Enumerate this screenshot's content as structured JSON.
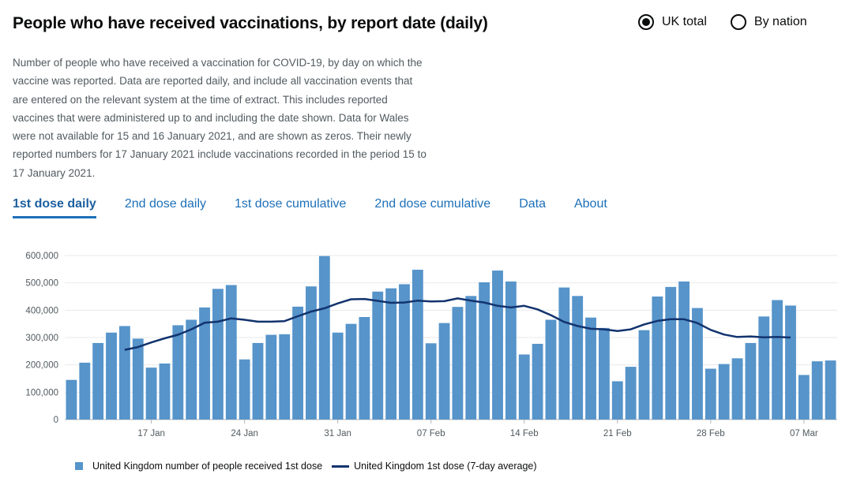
{
  "header": {
    "title": "People who have received vaccinations, by report date (daily)",
    "options": [
      {
        "label": "UK total",
        "selected": true
      },
      {
        "label": "By nation",
        "selected": false
      }
    ]
  },
  "description": "Number of people who have received a vaccination for COVID-19, by day on which the vaccine was reported. Data are reported daily, and include all vaccination events that are entered on the relevant system at the time of extract. This includes reported vaccines that were administered up to and including the date shown. Data for Wales were not available for 15 and 16 January 2021, and are shown as zeros. Their newly reported numbers for 17 January 2021 include vaccinations recorded in the period 15 to 17 January 2021.",
  "tabs": [
    {
      "label": "1st dose daily",
      "active": true
    },
    {
      "label": "2nd dose daily",
      "active": false
    },
    {
      "label": "1st dose cumulative",
      "active": false
    },
    {
      "label": "2nd dose cumulative",
      "active": false
    },
    {
      "label": "Data",
      "active": false
    },
    {
      "label": "About",
      "active": false
    }
  ],
  "colors": {
    "bar": "#5694ca",
    "line": "#12336e",
    "link": "#1d70b8",
    "grid": "#e9eaeb"
  },
  "chart_data": {
    "type": "bar",
    "x": [
      "2021-01-11",
      "2021-01-12",
      "2021-01-13",
      "2021-01-14",
      "2021-01-15",
      "2021-01-16",
      "2021-01-17",
      "2021-01-18",
      "2021-01-19",
      "2021-01-20",
      "2021-01-21",
      "2021-01-22",
      "2021-01-23",
      "2021-01-24",
      "2021-01-25",
      "2021-01-26",
      "2021-01-27",
      "2021-01-28",
      "2021-01-29",
      "2021-01-30",
      "2021-01-31",
      "2021-02-01",
      "2021-02-02",
      "2021-02-03",
      "2021-02-04",
      "2021-02-05",
      "2021-02-06",
      "2021-02-07",
      "2021-02-08",
      "2021-02-09",
      "2021-02-10",
      "2021-02-11",
      "2021-02-12",
      "2021-02-13",
      "2021-02-14",
      "2021-02-15",
      "2021-02-16",
      "2021-02-17",
      "2021-02-18",
      "2021-02-19",
      "2021-02-20",
      "2021-02-21",
      "2021-02-22",
      "2021-02-23",
      "2021-02-24",
      "2021-02-25",
      "2021-02-26",
      "2021-02-27",
      "2021-02-28",
      "2021-03-01",
      "2021-03-02",
      "2021-03-03",
      "2021-03-04",
      "2021-03-05",
      "2021-03-06",
      "2021-03-07",
      "2021-03-08",
      "2021-03-09"
    ],
    "series": [
      {
        "name": "United Kingdom number of people received 1st dose",
        "kind": "bar",
        "values": [
          145000,
          208000,
          280000,
          318000,
          342000,
          296000,
          190000,
          205000,
          345000,
          365000,
          410000,
          478000,
          492000,
          220000,
          280000,
          310000,
          312000,
          413000,
          487000,
          598000,
          318000,
          350000,
          375000,
          468000,
          480000,
          495000,
          548000,
          279000,
          353000,
          412000,
          452000,
          502000,
          545000,
          505000,
          238000,
          277000,
          365000,
          483000,
          452000,
          373000,
          335000,
          140000,
          193000,
          327000,
          450000,
          485000,
          505000,
          408000,
          186000,
          203000,
          224000,
          280000,
          377000,
          437000,
          417000,
          163000,
          213000,
          216000
        ]
      },
      {
        "name": "United Kingdom 1st dose (7-day average)",
        "kind": "line",
        "values": [
          null,
          null,
          null,
          null,
          255000,
          265000,
          282000,
          297000,
          310000,
          330000,
          354000,
          358000,
          370000,
          365000,
          358000,
          358000,
          360000,
          378000,
          395000,
          407000,
          425000,
          440000,
          441000,
          434000,
          427000,
          428000,
          435000,
          432000,
          433000,
          443000,
          435000,
          428000,
          416000,
          410000,
          416000,
          403000,
          382000,
          357000,
          342000,
          332000,
          330000,
          324000,
          330000,
          348000,
          361000,
          367000,
          367000,
          353000,
          328000,
          311000,
          302000,
          304000,
          301000,
          302000,
          300000,
          null,
          null,
          null
        ]
      }
    ],
    "x_tick_labels": [
      "17 Jan",
      "24 Jan",
      "31 Jan",
      "07 Feb",
      "14 Feb",
      "21 Feb",
      "28 Feb",
      "07 Mar"
    ],
    "y_tick_labels": [
      "0",
      "100,000",
      "200,000",
      "300,000",
      "400,000",
      "500,000",
      "600,000"
    ],
    "ylim": [
      0,
      600000
    ],
    "title": "",
    "xlabel": "",
    "ylabel": "",
    "grid": "horizontal",
    "legend_position": "bottom-left"
  }
}
